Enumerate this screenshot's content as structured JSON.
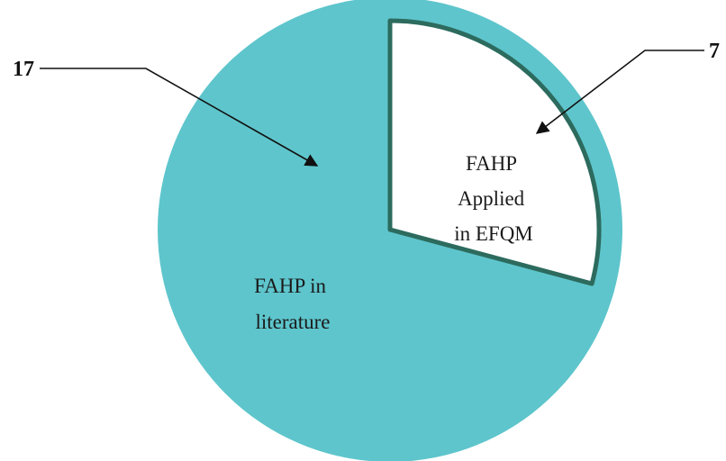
{
  "chart_data": {
    "type": "pie",
    "title": "",
    "slices": [
      {
        "label_lines": [
          "FAHP in",
          "literature"
        ],
        "value": 17,
        "color": "#5ec5cc"
      },
      {
        "label_lines": [
          "FAHP",
          "Applied",
          "in EFQM"
        ],
        "value": 7,
        "color": "#ffffff",
        "border": "#2c6b5e"
      }
    ],
    "legend": false
  }
}
